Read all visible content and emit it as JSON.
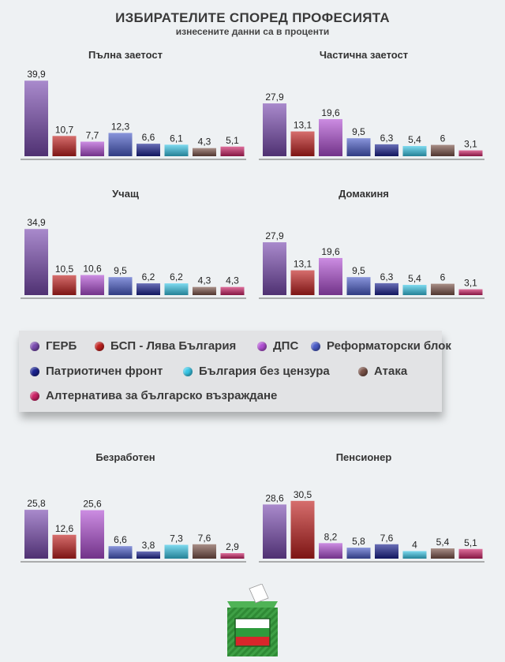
{
  "header": {
    "title": "ИЗБИРАТЕЛИТЕ СПОРЕД ПРОФЕСИЯТА",
    "subtitle": "изнесените данни са в проценти"
  },
  "parties": [
    {
      "name": "ГЕРБ",
      "color": "#7a4bb0"
    },
    {
      "name": "БСП - Лява България",
      "color": "#c0201e"
    },
    {
      "name": "ДПС",
      "color": "#b04fd3"
    },
    {
      "name": "Реформаторски блок",
      "color": "#4a5cc8"
    },
    {
      "name": "Патриотичен фронт",
      "color": "#1a2290"
    },
    {
      "name": "България без цензура",
      "color": "#38c6e6"
    },
    {
      "name": "Атака",
      "color": "#7a5248"
    },
    {
      "name": "Алтернатива за българско възраждане",
      "color": "#cc2266"
    }
  ],
  "chart_data": [
    {
      "type": "bar",
      "title": "Пълна заетост",
      "categories": [
        "ГЕРБ",
        "БСП - Лява България",
        "ДПС",
        "Реформаторски блок",
        "Патриотичен фронт",
        "България без цензура",
        "Атака",
        "Алтернатива за българско възраждане"
      ],
      "values": [
        39.9,
        10.7,
        7.7,
        12.3,
        6.6,
        6.1,
        4.3,
        5.1
      ],
      "labels": [
        "39,9",
        "10,7",
        "7,7",
        "12,3",
        "6,6",
        "6,1",
        "4,3",
        "5,1"
      ],
      "ylim": [
        0,
        40
      ]
    },
    {
      "type": "bar",
      "title": "Частична заетост",
      "categories": [
        "ГЕРБ",
        "БСП - Лява България",
        "ДПС",
        "Реформаторски блок",
        "Патриотичен фронт",
        "България без цензура",
        "Атака",
        "Алтернатива за българско възраждане"
      ],
      "values": [
        27.9,
        13.1,
        19.6,
        9.5,
        6.3,
        5.4,
        6,
        3.1
      ],
      "labels": [
        "27,9",
        "13,1",
        "19,6",
        "9,5",
        "6,3",
        "5,4",
        "6",
        "3,1"
      ],
      "ylim": [
        0,
        40
      ]
    },
    {
      "type": "bar",
      "title": "Учащ",
      "categories": [
        "ГЕРБ",
        "БСП - Лява България",
        "ДПС",
        "Реформаторски блок",
        "Патриотичен фронт",
        "България без цензура",
        "Атака",
        "Алтернатива за българско възраждане"
      ],
      "values": [
        34.9,
        10.5,
        10.6,
        9.5,
        6.2,
        6.2,
        4.3,
        4.3
      ],
      "labels": [
        "34,9",
        "10,5",
        "10,6",
        "9,5",
        "6,2",
        "6,2",
        "4,3",
        "4,3"
      ],
      "ylim": [
        0,
        40
      ]
    },
    {
      "type": "bar",
      "title": "Домакиня",
      "categories": [
        "ГЕРБ",
        "БСП - Лява България",
        "ДПС",
        "Реформаторски блок",
        "Патриотичен фронт",
        "България без цензура",
        "Атака",
        "Алтернатива за българско възраждане"
      ],
      "values": [
        27.9,
        13.1,
        19.6,
        9.5,
        6.3,
        5.4,
        6,
        3.1
      ],
      "labels": [
        "27,9",
        "13,1",
        "19,6",
        "9,5",
        "6,3",
        "5,4",
        "6",
        "3,1"
      ],
      "ylim": [
        0,
        40
      ]
    },
    {
      "type": "bar",
      "title": "Безработен",
      "categories": [
        "ГЕРБ",
        "БСП - Лява България",
        "ДПС",
        "Реформаторски блок",
        "Патриотичен фронт",
        "България без цензура",
        "Атака",
        "Алтернатива за българско възраждане"
      ],
      "values": [
        25.8,
        12.6,
        25.6,
        6.6,
        3.8,
        7.3,
        7.6,
        2.9
      ],
      "labels": [
        "25,8",
        "12,6",
        "25,6",
        "6,6",
        "3,8",
        "7,3",
        "7,6",
        "2,9"
      ],
      "ylim": [
        0,
        40
      ]
    },
    {
      "type": "bar",
      "title": "Пенсионер",
      "categories": [
        "ГЕРБ",
        "БСП - Лява България",
        "ДПС",
        "Реформаторски блок",
        "Патриотичен фронт",
        "България без цензура",
        "Атака",
        "Алтернатива за българско възраждане"
      ],
      "values": [
        28.6,
        30.5,
        8.2,
        5.8,
        7.6,
        4,
        5.4,
        5.1
      ],
      "labels": [
        "28,6",
        "30,5",
        "8,2",
        "5,8",
        "7,6",
        "4",
        "5,4",
        "5,1"
      ],
      "ylim": [
        0,
        40
      ]
    }
  ]
}
